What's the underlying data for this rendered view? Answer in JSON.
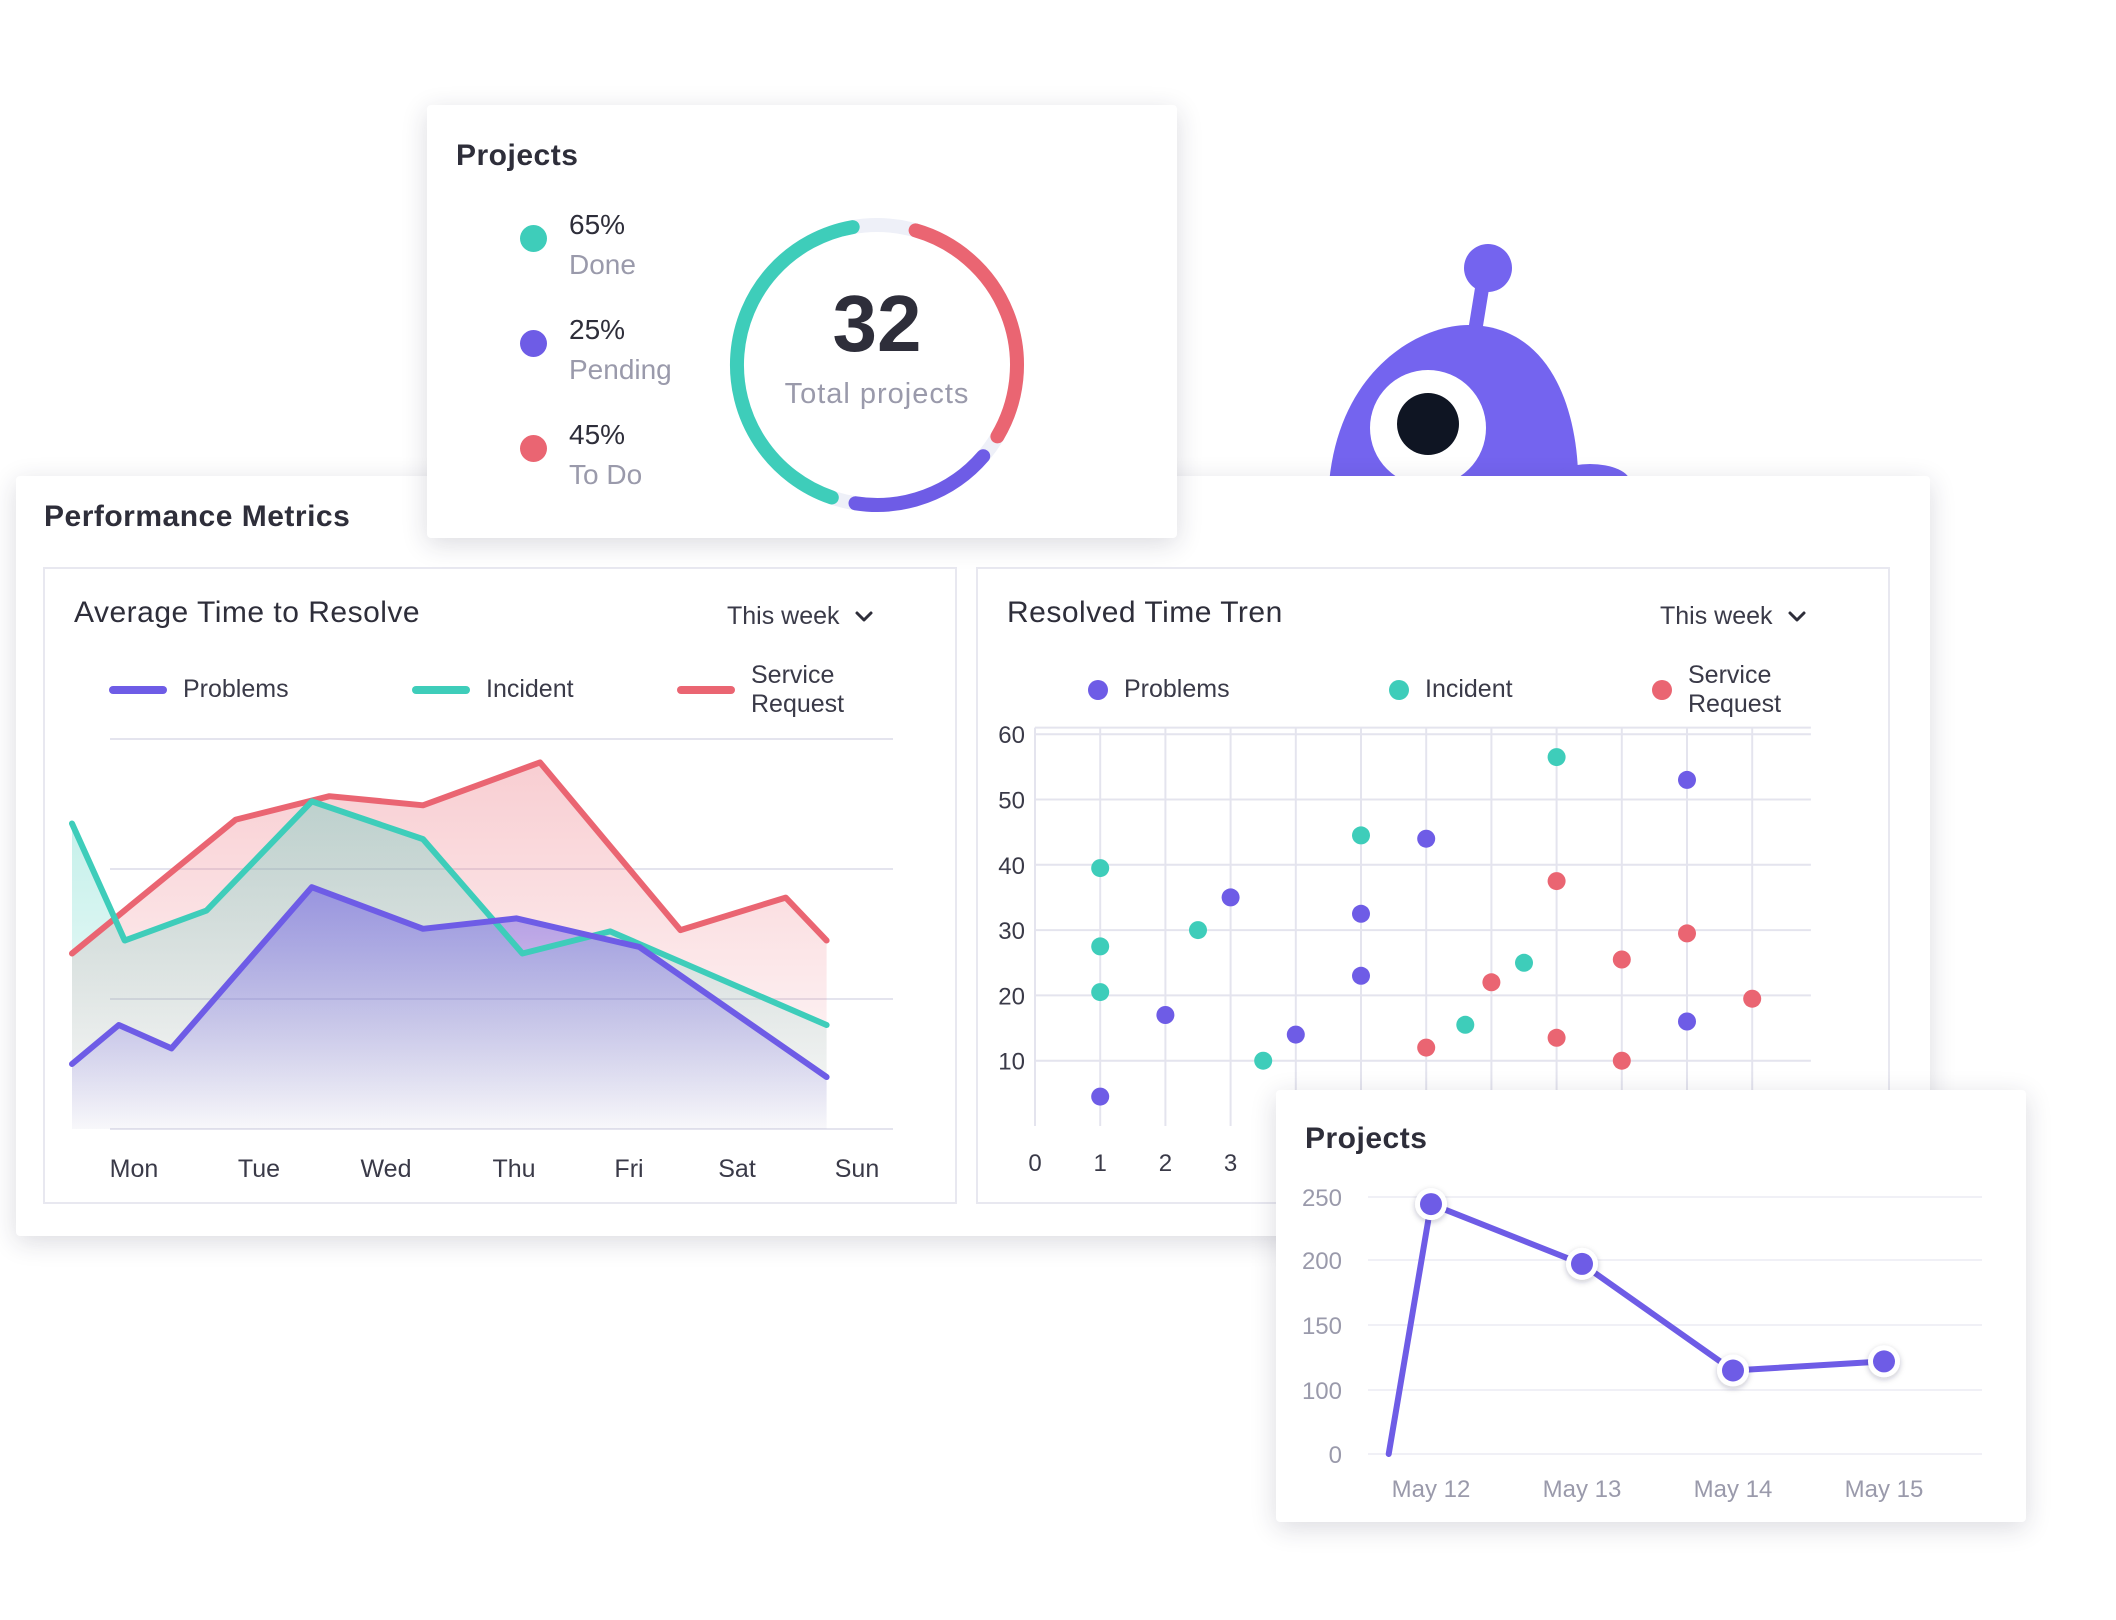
{
  "colors": {
    "problems": "#6e5ce6",
    "incident": "#3ecdba",
    "service_request": "#ea6572",
    "donut_track": "#eef0f8",
    "mascot": "#7464ef",
    "mascot_eye": "#0f1523",
    "grid": "#e4e4ee",
    "axis_text": "#3a3a48",
    "muted_text": "#9a9aab"
  },
  "projects_card": {
    "title": "Projects",
    "legend": [
      {
        "pct": "65%",
        "label": "Done",
        "color": "#3ecdba"
      },
      {
        "pct": "25%",
        "label": "Pending",
        "color": "#6e5ce6"
      },
      {
        "pct": "45%",
        "label": "To Do",
        "color": "#ea6572"
      }
    ],
    "total_value": "32",
    "total_label": "Total projects"
  },
  "performance": {
    "title": "Performance Metrics",
    "avg_panel": {
      "title": "Average Time to Resolve",
      "dropdown": "This week",
      "legend": [
        {
          "label": "Problems",
          "color": "#6e5ce6"
        },
        {
          "label": "Incident",
          "color": "#3ecdba"
        },
        {
          "label_line1": "Service",
          "label_line2": "Request",
          "color": "#ea6572"
        }
      ]
    },
    "trend_panel": {
      "title": "Resolved Time Tren",
      "dropdown": "This week",
      "legend": [
        {
          "label": "Problems",
          "color": "#6e5ce6"
        },
        {
          "label": "Incident",
          "color": "#3ecdba"
        },
        {
          "label_line1": "Service",
          "label_line2": "Request",
          "color": "#ea6572"
        }
      ]
    }
  },
  "mini_projects": {
    "title": "Projects"
  },
  "chart_data": [
    {
      "type": "area",
      "title": "Average Time to Resolve",
      "categories": [
        "Mon",
        "Tue",
        "Wed",
        "Thu",
        "Fri",
        "Sat",
        "Sun"
      ],
      "ylim": [
        0,
        30
      ],
      "grid": true,
      "legend_position": "top",
      "series": [
        {
          "name": "Problems",
          "color": "#6e5ce6",
          "x": [
            0,
            0.4,
            0.85,
            2.05,
            3.0,
            3.8,
            4.85,
            6.45
          ],
          "values": [
            5,
            8,
            6.2,
            18.6,
            15.4,
            16.2,
            14,
            4
          ]
        },
        {
          "name": "Incident",
          "color": "#3ecdba",
          "x": [
            0,
            0.45,
            1.15,
            2.05,
            3.0,
            3.85,
            4.6,
            6.45
          ],
          "values": [
            23.5,
            14.5,
            16.8,
            25.2,
            22.3,
            13.5,
            15.2,
            8
          ]
        },
        {
          "name": "Service Request",
          "color": "#ea6572",
          "x": [
            0,
            1.4,
            2.2,
            3.0,
            4.0,
            5.2,
            6.1,
            6.45
          ],
          "values": [
            13.5,
            23.8,
            25.6,
            24.9,
            28.2,
            15.3,
            17.8,
            14.5
          ]
        }
      ]
    },
    {
      "type": "scatter",
      "title": "Resolved Time Tren",
      "xlim": [
        0,
        12
      ],
      "ylim": [
        0,
        60
      ],
      "x_ticks": [
        0,
        1,
        2,
        3
      ],
      "y_ticks": [
        10,
        20,
        30,
        40,
        50,
        60
      ],
      "grid": true,
      "legend_position": "top",
      "series": [
        {
          "name": "Problems",
          "color": "#6e5ce6",
          "points": [
            [
              1,
              4.5
            ],
            [
              2,
              17
            ],
            [
              3,
              35
            ],
            [
              4,
              14
            ],
            [
              5,
              32.5
            ],
            [
              5,
              23
            ],
            [
              6,
              44
            ],
            [
              10,
              53
            ],
            [
              10,
              16
            ],
            [
              11,
              0.5
            ]
          ]
        },
        {
          "name": "Incident",
          "color": "#3ecdba",
          "points": [
            [
              1,
              39.5
            ],
            [
              1,
              27.5
            ],
            [
              1,
              20.5
            ],
            [
              2.5,
              30
            ],
            [
              3.5,
              10
            ],
            [
              5,
              44.5
            ],
            [
              6.6,
              15.5
            ],
            [
              7,
              0.5
            ],
            [
              7.5,
              1.5
            ],
            [
              7.5,
              25
            ],
            [
              8,
              56.5
            ]
          ]
        },
        {
          "name": "Service Request",
          "color": "#ea6572",
          "points": [
            [
              5,
              0.5
            ],
            [
              6,
              12
            ],
            [
              7,
              22
            ],
            [
              8,
              37.5
            ],
            [
              8,
              13.5
            ],
            [
              9,
              25.5
            ],
            [
              9,
              10
            ],
            [
              9,
              1
            ],
            [
              10,
              29.5
            ],
            [
              11,
              19.5
            ]
          ]
        }
      ]
    },
    {
      "type": "line",
      "title": "Projects",
      "categories": [
        "May 12",
        "May 13",
        "May 14",
        "May 15"
      ],
      "y_ticks": [
        0,
        100,
        150,
        200,
        250
      ],
      "grid": true,
      "series": [
        {
          "color": "#6e5ce6",
          "x": [
            -0.28,
            0,
            1,
            2,
            3
          ],
          "values": [
            0,
            243,
            197,
            115,
            122
          ],
          "marked": [
            false,
            true,
            true,
            true,
            true
          ]
        }
      ]
    },
    {
      "type": "pie",
      "title": "Projects",
      "slices": [
        {
          "label": "Done",
          "value": 65,
          "color": "#3ecdba"
        },
        {
          "label": "Pending",
          "value": 25,
          "color": "#6e5ce6"
        },
        {
          "label": "To Do",
          "value": 45,
          "color": "#ea6572"
        }
      ],
      "center_value": "32",
      "center_label": "Total projects"
    }
  ]
}
